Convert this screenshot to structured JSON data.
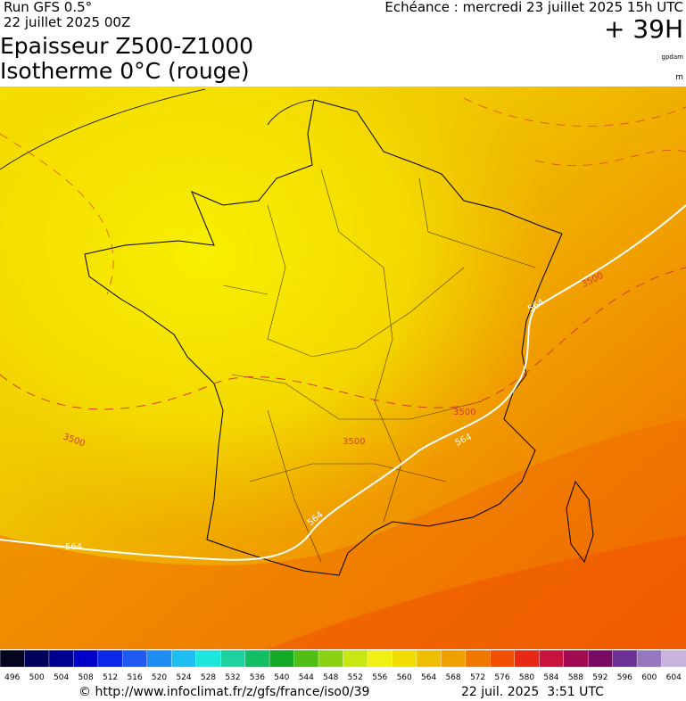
{
  "header": {
    "run": "Run GFS 0.5°",
    "run_date": "22 juillet 2025 00Z",
    "title_line1": "Epaisseur Z500-Z1000",
    "title_line2": "Isotherme 0°C (rouge)",
    "valid_time": "Echéance : mercredi 23 juillet 2025 15h UTC",
    "lead_time": "+ 39H",
    "unit_thickness": "gpdam",
    "unit_iso0": "m"
  },
  "map": {
    "thickness_labels": [
      "564",
      "564",
      "564",
      "564"
    ],
    "iso0_labels": [
      "3500",
      "3500",
      "3500",
      "3500"
    ]
  },
  "colorbar": {
    "labels": [
      496,
      500,
      504,
      508,
      512,
      516,
      520,
      524,
      528,
      532,
      536,
      540,
      544,
      548,
      552,
      556,
      560,
      564,
      568,
      572,
      576,
      580,
      584,
      588,
      592,
      596,
      600,
      604
    ],
    "colors": [
      "#050520",
      "#00005a",
      "#000090",
      "#0000c8",
      "#0a28e6",
      "#1e5af0",
      "#1e8cf0",
      "#1ebef0",
      "#1ee6dc",
      "#1ed2a0",
      "#14be64",
      "#14aa28",
      "#50be14",
      "#8cd214",
      "#c8e614",
      "#f0f014",
      "#f0dc00",
      "#f0be00",
      "#f0a000",
      "#f07800",
      "#f05000",
      "#e62814",
      "#c8143c",
      "#a00a50",
      "#780a64",
      "#6e3296",
      "#9678be",
      "#c8b4dc"
    ]
  },
  "footer": {
    "source": "© http://www.infoclimat.fr/z/gfs/france/iso0/39",
    "timestamp": "22 juil. 2025  3:51 UTC"
  }
}
